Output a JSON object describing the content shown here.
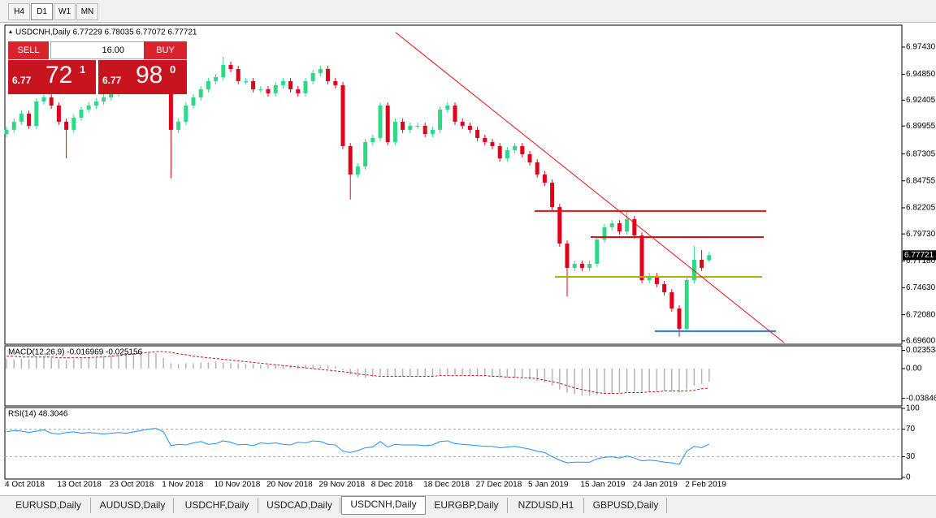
{
  "toolbar": {
    "timeframes": [
      "H4",
      "D1",
      "W1",
      "MN"
    ]
  },
  "trade_panel": {
    "sell_label": "SELL",
    "buy_label": "BUY",
    "volume": "16.00",
    "sell_price": {
      "prefix": "6.77",
      "big": "72",
      "sup": "1"
    },
    "buy_price": {
      "prefix": "6.77",
      "big": "98",
      "sup": "0"
    }
  },
  "chart_data": [
    {
      "type": "candlestick",
      "title": "USDCNH,Daily 6.77229 6.78035 6.77072 6.77721",
      "categories": [
        "4 Oct 2018",
        null,
        null,
        null,
        null,
        null,
        null,
        "13 Oct 2018",
        null,
        null,
        null,
        null,
        null,
        null,
        "23 Oct 2018",
        null,
        null,
        null,
        null,
        null,
        null,
        "1 Nov 2018",
        null,
        null,
        null,
        null,
        null,
        null,
        "10 Nov 2018",
        null,
        null,
        null,
        null,
        null,
        null,
        "20 Nov 2018",
        null,
        null,
        null,
        null,
        null,
        null,
        "29 Nov 2018",
        null,
        null,
        null,
        null,
        null,
        null,
        "8 Dec 2018",
        null,
        null,
        null,
        null,
        null,
        null,
        "18 Dec 2018",
        null,
        null,
        null,
        null,
        null,
        null,
        "27 Dec 2018",
        null,
        null,
        null,
        null,
        null,
        null,
        "5 Jan 2019",
        null,
        null,
        null,
        null,
        null,
        null,
        "15 Jan 2019",
        null,
        null,
        null,
        null,
        null,
        null,
        "24 Jan 2019",
        null,
        null,
        null,
        null,
        null,
        null,
        "2 Feb 2019",
        null,
        null,
        null
      ],
      "open": [
        6.892,
        6.8959,
        6.9036,
        6.9112,
        6.8997,
        6.9228,
        6.9266,
        6.9189,
        6.9036,
        6.8959,
        6.9074,
        6.9151,
        6.9189,
        6.9228,
        6.9266,
        6.9305,
        6.9343,
        6.9382,
        6.942,
        6.942,
        6.9458,
        6.942,
        6.9382,
        6.8959,
        6.9036,
        6.9189,
        6.9266,
        6.9343,
        6.942,
        6.9458,
        6.9574,
        6.9535,
        6.942,
        6.942,
        6.9343,
        6.9343,
        6.9305,
        6.9382,
        6.942,
        6.9343,
        6.9305,
        6.942,
        6.9497,
        6.9535,
        6.942,
        6.9382,
        6.8805,
        6.8536,
        6.8613,
        6.8843,
        6.8882,
        6.9189,
        6.8843,
        6.9036,
        6.8959,
        6.8997,
        6.8997,
        6.892,
        6.8959,
        6.9151,
        6.9189,
        6.9036,
        6.8997,
        6.8959,
        6.8882,
        6.8843,
        6.8805,
        6.8689,
        6.8766,
        6.8805,
        6.8728,
        6.8651,
        6.8536,
        6.8459,
        6.8228,
        6.7882,
        6.7651,
        6.769,
        6.7651,
        6.769,
        6.792,
        6.8036,
        6.8074,
        6.7997,
        6.8113,
        6.7959,
        6.7536,
        6.7574,
        6.7498,
        6.7421,
        6.7267,
        6.7075,
        6.7536,
        6.7728,
        6.77229
      ],
      "high": [
        6.8989,
        6.9066,
        6.9142,
        6.9142,
        6.9258,
        6.9296,
        6.9296,
        6.9219,
        6.9066,
        6.9104,
        6.9181,
        6.9219,
        6.9258,
        6.9296,
        6.9335,
        6.9373,
        6.9412,
        6.945,
        6.945,
        6.9488,
        6.9488,
        6.945,
        6.9412,
        6.9066,
        6.9219,
        6.9296,
        6.9373,
        6.945,
        6.9488,
        6.965,
        6.9604,
        6.9565,
        6.945,
        6.945,
        6.9373,
        6.9373,
        6.9412,
        6.945,
        6.945,
        6.9373,
        6.945,
        6.9527,
        6.9565,
        6.9565,
        6.945,
        6.9412,
        6.8835,
        6.8643,
        6.8873,
        6.8912,
        6.9219,
        6.9219,
        6.9066,
        6.9066,
        6.9027,
        6.9027,
        6.9027,
        6.8989,
        6.9181,
        6.9219,
        6.9219,
        6.9066,
        6.9027,
        6.8989,
        6.8912,
        6.8873,
        6.8835,
        6.8796,
        6.8835,
        6.8835,
        6.8758,
        6.8681,
        6.8566,
        6.8489,
        6.8258,
        6.7912,
        6.772,
        6.772,
        6.772,
        6.795,
        6.8066,
        6.8104,
        6.8104,
        6.819,
        6.8143,
        6.7989,
        6.7604,
        6.7604,
        6.7528,
        6.7451,
        6.7297,
        6.7566,
        6.7858,
        6.782,
        6.78035
      ],
      "low": [
        6.889,
        6.8929,
        6.9006,
        6.8967,
        6.8967,
        6.9198,
        6.9159,
        6.9006,
        6.869,
        6.8929,
        6.9044,
        6.9121,
        6.9159,
        6.9198,
        6.9236,
        6.9275,
        6.9313,
        6.9352,
        6.939,
        6.939,
        6.939,
        6.9352,
        6.85,
        6.8929,
        6.9006,
        6.9159,
        6.9236,
        6.9313,
        6.939,
        6.9428,
        6.9505,
        6.939,
        6.939,
        6.9313,
        6.9313,
        6.9275,
        6.9275,
        6.9352,
        6.9313,
        6.9275,
        6.9275,
        6.939,
        6.9467,
        6.939,
        6.9352,
        6.8775,
        6.83,
        6.8506,
        6.8583,
        6.8813,
        6.8852,
        6.8813,
        6.8813,
        6.8929,
        6.8929,
        6.8967,
        6.889,
        6.889,
        6.8929,
        6.9121,
        6.9006,
        6.8967,
        6.8929,
        6.8852,
        6.8813,
        6.8775,
        6.8659,
        6.8659,
        6.8736,
        6.8698,
        6.8621,
        6.8506,
        6.8429,
        6.8198,
        6.7852,
        6.7382,
        6.7621,
        6.7621,
        6.7621,
        6.766,
        6.789,
        6.8006,
        6.7967,
        6.7967,
        6.7929,
        6.7506,
        6.7506,
        6.7468,
        6.7391,
        6.7237,
        6.7,
        6.7045,
        6.7506,
        6.7621,
        6.77072
      ],
      "close": [
        6.8959,
        6.9036,
        6.9112,
        6.8997,
        6.9228,
        6.9266,
        6.9189,
        6.9036,
        6.8959,
        6.9074,
        6.9151,
        6.9189,
        6.9228,
        6.9266,
        6.9305,
        6.9343,
        6.9382,
        6.942,
        6.942,
        6.9458,
        6.942,
        6.9382,
        6.8959,
        6.9036,
        6.9189,
        6.9266,
        6.9343,
        6.942,
        6.9458,
        6.9574,
        6.9535,
        6.942,
        6.942,
        6.9343,
        6.9343,
        6.9305,
        6.9382,
        6.942,
        6.9343,
        6.9305,
        6.942,
        6.9497,
        6.9535,
        6.942,
        6.9382,
        6.8805,
        6.8536,
        6.8613,
        6.8843,
        6.8882,
        6.9189,
        6.8843,
        6.9036,
        6.8959,
        6.8997,
        6.8997,
        6.892,
        6.8959,
        6.9151,
        6.9189,
        6.9036,
        6.8997,
        6.8959,
        6.8882,
        6.8843,
        6.8805,
        6.8689,
        6.8766,
        6.8805,
        6.8728,
        6.8651,
        6.8536,
        6.8459,
        6.8228,
        6.7882,
        6.7651,
        6.769,
        6.7651,
        6.769,
        6.792,
        6.8036,
        6.8074,
        6.7997,
        6.8113,
        6.7959,
        6.7536,
        6.7574,
        6.7498,
        6.7421,
        6.7267,
        6.7075,
        6.7536,
        6.7728,
        6.7651,
        6.77721
      ],
      "up_color": "#2fd887",
      "down_color": "#e3001b",
      "ylim": [
        6.6936,
        6.9935
      ],
      "yticks": [
        {
          "value": 6.9743,
          "label": "6.97430"
        },
        {
          "value": 6.9485,
          "label": "6.94850"
        },
        6.92405,
        6.89955,
        6.87305,
        6.84755,
        6.82205,
        {
          "value": 6.7973,
          "label": "6.79730"
        },
        {
          "value": 6.7718,
          "label": "6.77180"
        },
        {
          "value": 6.7463,
          "label": "6.74630"
        },
        {
          "value": 6.7208,
          "label": "6.72080"
        },
        {
          "value": 6.696,
          "label": "6.69600"
        }
      ],
      "levels": [
        {
          "value": 6.819,
          "color": "#e01010"
        },
        {
          "value": 6.7943,
          "color": "#e01010"
        },
        {
          "value": 6.7567,
          "color": "#a8b400"
        },
        {
          "value": 6.7052,
          "color": "#1e7ae0"
        }
      ],
      "trendline": {
        "values": [
          6.9881,
          6.6944
        ],
        "color": "#e01010"
      },
      "last_price_label": "6.77721"
    },
    {
      "type": "macd",
      "title": "MACD(12,26,9) -0.016969 -0.025156",
      "values": [
        0.013,
        0.012,
        0.013,
        0.012,
        0.014,
        0.015,
        0.014,
        0.012,
        0.011,
        0.012,
        0.013,
        0.014,
        0.015,
        0.016,
        0.017,
        0.018,
        0.019,
        0.02,
        0.02,
        0.021,
        0.02,
        0.014,
        0.007,
        0.006,
        0.007,
        0.007,
        0.008,
        0.008,
        0.009,
        0.008,
        0.007,
        0.007,
        0.006,
        0.006,
        0.005,
        0.005,
        0.005,
        0.004,
        0.004,
        0.005,
        0.005,
        0.005,
        0.004,
        0.004,
        0.003,
        -0.002,
        -0.008,
        -0.011,
        -0.012,
        -0.011,
        -0.009,
        -0.01,
        -0.01,
        -0.01,
        -0.01,
        -0.01,
        -0.01,
        -0.011,
        -0.009,
        -0.008,
        -0.008,
        -0.008,
        -0.008,
        -0.009,
        -0.01,
        -0.011,
        -0.012,
        -0.012,
        -0.012,
        -0.013,
        -0.014,
        -0.016,
        -0.018,
        -0.022,
        -0.027,
        -0.031,
        -0.033,
        -0.035,
        -0.035,
        -0.034,
        -0.033,
        -0.032,
        -0.031,
        -0.03,
        -0.03,
        -0.031,
        -0.03,
        -0.029,
        -0.029,
        -0.03,
        -0.031,
        -0.027,
        -0.022,
        -0.02,
        -0.017
      ],
      "signal": [
        0.016,
        0.016,
        0.015,
        0.015,
        0.015,
        0.015,
        0.015,
        0.014,
        0.014,
        0.014,
        0.014,
        0.014,
        0.015,
        0.015,
        0.016,
        0.017,
        0.018,
        0.019,
        0.02,
        0.021,
        0.022,
        0.022,
        0.021,
        0.019,
        0.018,
        0.016,
        0.015,
        0.014,
        0.013,
        0.012,
        0.011,
        0.01,
        0.009,
        0.008,
        0.007,
        0.006,
        0.005,
        0.004,
        0.003,
        0.002,
        0.001,
        0.0,
        -0.001,
        -0.002,
        -0.003,
        -0.004,
        -0.005,
        -0.007,
        -0.008,
        -0.009,
        -0.01,
        -0.01,
        -0.01,
        -0.01,
        -0.01,
        -0.01,
        -0.01,
        -0.01,
        -0.009,
        -0.009,
        -0.009,
        -0.009,
        -0.009,
        -0.009,
        -0.009,
        -0.01,
        -0.01,
        -0.011,
        -0.011,
        -0.012,
        -0.012,
        -0.013,
        -0.015,
        -0.017,
        -0.019,
        -0.022,
        -0.025,
        -0.027,
        -0.029,
        -0.031,
        -0.032,
        -0.032,
        -0.032,
        -0.031,
        -0.031,
        -0.031,
        -0.03,
        -0.03,
        -0.029,
        -0.029,
        -0.029,
        -0.029,
        -0.028,
        -0.026,
        -0.0252
      ],
      "color": "#b4b4b4",
      "signal_color": "#c01818",
      "ylim": [
        -0.0462,
        0.02625
      ],
      "yticks": [
        0.023534,
        {
          "value": 0,
          "label": "0.00"
        },
        -0.038466
      ]
    },
    {
      "type": "line",
      "title": "RSI(14) 48.3046",
      "values": [
        66,
        68,
        67,
        65,
        67,
        69,
        64,
        63,
        65,
        66,
        64,
        65,
        64,
        63,
        64,
        65,
        64,
        66,
        68,
        70,
        71,
        66,
        46,
        48,
        47,
        50,
        52,
        48,
        49,
        53,
        51,
        47,
        48,
        46,
        50,
        49,
        50,
        48,
        47,
        51,
        50,
        53,
        52,
        48,
        47,
        38,
        36,
        39,
        43,
        44,
        52,
        44,
        48,
        47,
        47,
        47,
        46,
        47,
        52,
        53,
        49,
        48,
        47,
        46,
        45,
        45,
        43,
        44,
        45,
        43,
        41,
        38,
        36,
        30,
        25,
        21,
        22,
        22,
        22,
        27,
        29,
        30,
        28,
        31,
        28,
        24,
        25,
        24,
        22,
        21,
        19,
        38,
        45,
        43,
        48.3046
      ],
      "color": "#1e90ff",
      "ylim": [
        0,
        100
      ],
      "yticks": [
        100,
        70,
        30,
        0
      ]
    }
  ],
  "symbol_tabs": [
    "EURUSD,Daily",
    "AUDUSD,Daily",
    "USDCHF,Daily",
    "USDCAD,Daily",
    "USDCNH,Daily",
    "EURGBP,Daily",
    "NZDUSD,H1",
    "GBPUSD,Daily"
  ]
}
